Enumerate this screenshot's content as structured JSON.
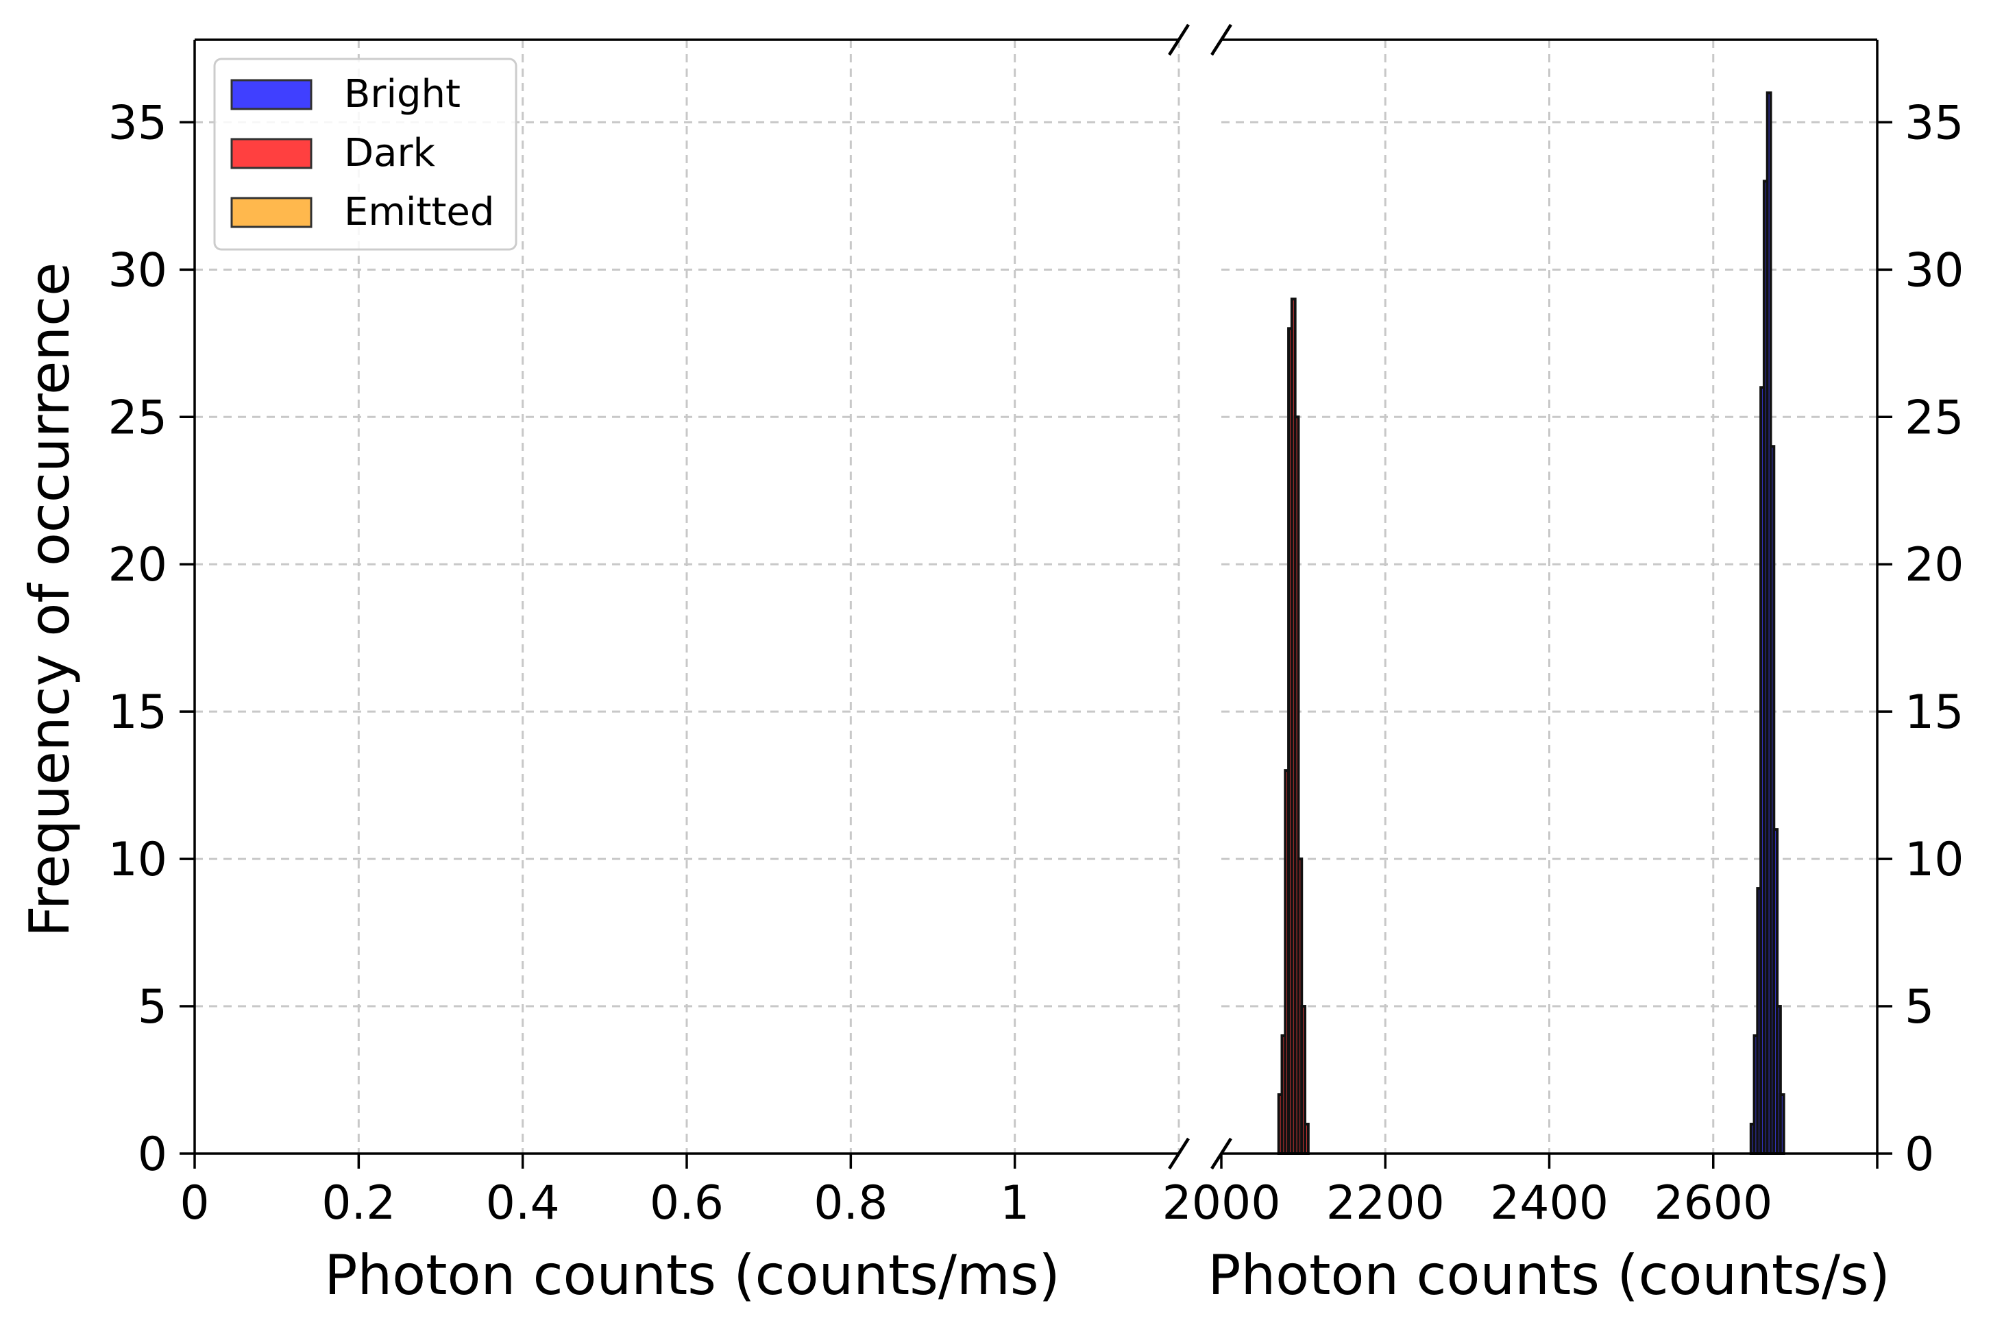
{
  "chart_data": {
    "type": "bar",
    "subtype": "histogram-broken-x-axis",
    "ylabel": "Frequency of occurrence",
    "ylim": [
      0,
      37.8
    ],
    "yticks": [
      0,
      5,
      10,
      15,
      20,
      25,
      30,
      35
    ],
    "grid": true,
    "grid_style": "dashed",
    "legend": {
      "placement": "top-left",
      "entries": [
        {
          "label": "Bright",
          "color": "#4040ff"
        },
        {
          "label": "Dark",
          "color": "#ff4040"
        },
        {
          "label": "Emitted",
          "color": "#ffb84d"
        }
      ]
    },
    "panels": [
      {
        "xlabel": "Photon counts (counts/ms)",
        "xlim": [
          0,
          1.2
        ],
        "xticks": [
          {
            "value": 0,
            "label": "0"
          },
          {
            "value": 0.2,
            "label": "0.2"
          },
          {
            "value": 0.4,
            "label": "0.4"
          },
          {
            "value": 0.6,
            "label": "0.6"
          },
          {
            "value": 0.8,
            "label": "0.8"
          },
          {
            "value": 1,
            "label": "1"
          }
        ]
      },
      {
        "xlabel": "Photon counts (counts/s)",
        "xlim": [
          2000,
          2800
        ],
        "xticks": [
          {
            "value": 2000,
            "label": "2000"
          },
          {
            "value": 2200,
            "label": "2200"
          },
          {
            "value": 2400,
            "label": "2400"
          },
          {
            "value": 2600,
            "label": "2600"
          }
        ],
        "series": [
          {
            "name": "Dark",
            "color": "#ff4040",
            "bin_width": 4,
            "bins": [
              [
                2070,
                2
              ],
              [
                2074,
                4
              ],
              [
                2078,
                13
              ],
              [
                2082,
                28
              ],
              [
                2086,
                29
              ],
              [
                2090,
                25
              ],
              [
                2094,
                10
              ],
              [
                2098,
                5
              ],
              [
                2102,
                1
              ]
            ]
          },
          {
            "name": "Bright",
            "color": "#4040ff",
            "bin_width": 4,
            "bins": [
              [
                2646,
                1
              ],
              [
                2650,
                4
              ],
              [
                2654,
                9
              ],
              [
                2658,
                26
              ],
              [
                2662,
                33
              ],
              [
                2666,
                36
              ],
              [
                2670,
                24
              ],
              [
                2674,
                11
              ],
              [
                2678,
                5
              ],
              [
                2682,
                2
              ]
            ]
          }
        ]
      }
    ]
  }
}
